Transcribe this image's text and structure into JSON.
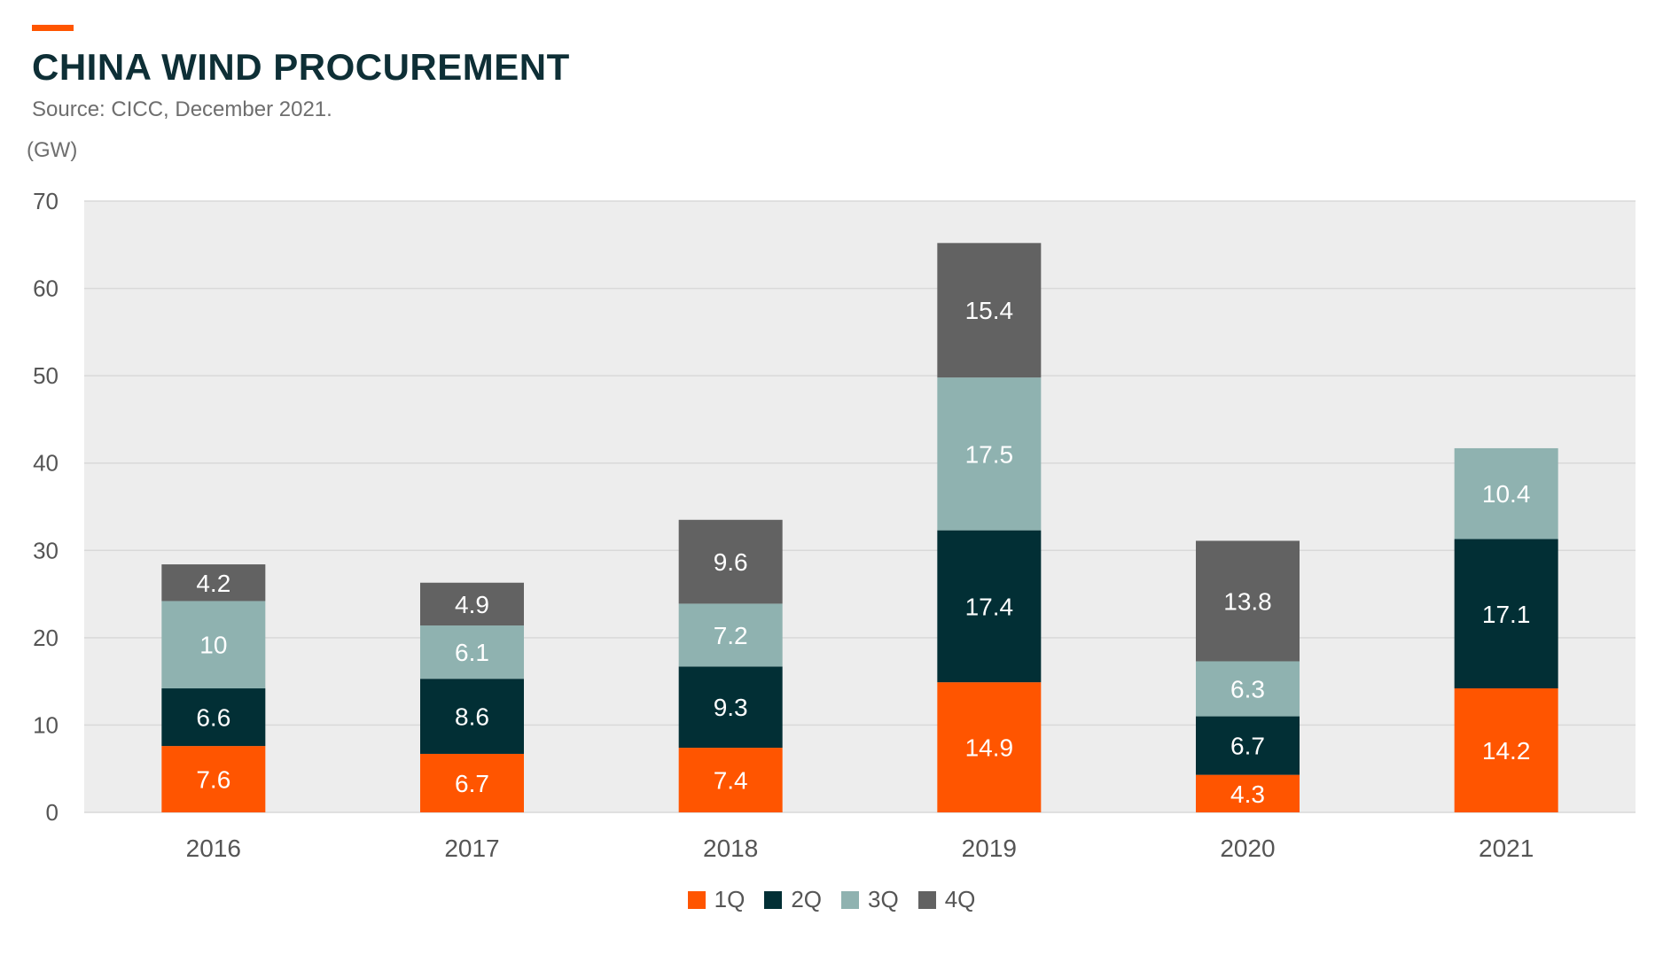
{
  "header": {
    "title": "CHINA WIND PROCUREMENT",
    "subtitle": "Source: CICC, December 2021.",
    "unit": "(GW)"
  },
  "colors": {
    "accent": "#ff5500",
    "plot_background": "#ededed",
    "gridline": "#d9d9d9",
    "axis_text": "#555555",
    "q1": "#ff5500",
    "q2": "#022f35",
    "q3": "#8fb2b0",
    "q4": "#626262"
  },
  "chart_data": {
    "type": "bar",
    "stacked": true,
    "title": "CHINA WIND PROCUREMENT",
    "subtitle": "Source: CICC, December 2021.",
    "ylabel": "(GW)",
    "xlabel": "",
    "categories": [
      "2016",
      "2017",
      "2018",
      "2019",
      "2020",
      "2021"
    ],
    "series": [
      {
        "name": "1Q",
        "color": "#ff5500",
        "values": [
          7.6,
          6.7,
          7.4,
          14.9,
          4.3,
          14.2
        ]
      },
      {
        "name": "2Q",
        "color": "#022f35",
        "values": [
          6.6,
          8.6,
          9.3,
          17.4,
          6.7,
          17.1
        ]
      },
      {
        "name": "3Q",
        "color": "#8fb2b0",
        "values": [
          10,
          6.1,
          7.2,
          17.5,
          6.3,
          10.4
        ]
      },
      {
        "name": "4Q",
        "color": "#626262",
        "values": [
          4.2,
          4.9,
          9.6,
          15.4,
          13.8,
          null
        ]
      }
    ],
    "ylim": [
      0,
      70
    ],
    "yticks": [
      "0",
      "10",
      "20",
      "30",
      "40",
      "50",
      "60",
      "70"
    ],
    "grid": true,
    "legend": "bottom-center",
    "data_labels": true
  }
}
